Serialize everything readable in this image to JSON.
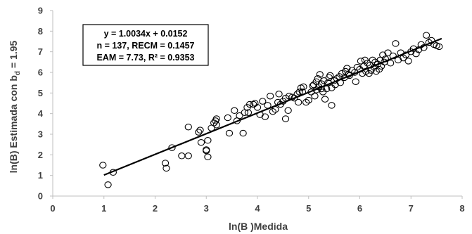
{
  "chart_data": {
    "type": "scatter",
    "xlabel": "ln(B )Medida",
    "ylabel_main": "ln(B) Estimada con b",
    "ylabel_sub": "d",
    "ylabel_tail": "= 1.95",
    "xlim": [
      0,
      8
    ],
    "ylim": [
      0,
      9
    ],
    "xticks": [
      "0",
      "1",
      "2",
      "3",
      "4",
      "5",
      "6",
      "7",
      "8"
    ],
    "yticks": [
      "0",
      "1",
      "2",
      "3",
      "4",
      "5",
      "6",
      "7",
      "8",
      "9"
    ],
    "grid": false,
    "annotation": {
      "line1": "y = 1.0034x + 0.0152",
      "line2": "n = 137, RECM = 0.1457",
      "line3": "EAM = 7.73, R² = 0.9353"
    },
    "trendline": {
      "slope": 1.0034,
      "intercept": 0.0152,
      "x_start": 1.0,
      "x_end": 7.6
    },
    "points": [
      [
        0.98,
        1.5
      ],
      [
        1.08,
        0.55
      ],
      [
        1.18,
        1.15
      ],
      [
        2.2,
        1.6
      ],
      [
        2.22,
        1.35
      ],
      [
        2.33,
        2.35
      ],
      [
        2.52,
        1.95
      ],
      [
        2.65,
        1.95
      ],
      [
        2.65,
        3.35
      ],
      [
        2.85,
        3.1
      ],
      [
        2.88,
        3.2
      ],
      [
        2.9,
        2.6
      ],
      [
        3.0,
        2.25
      ],
      [
        3.0,
        2.2
      ],
      [
        3.03,
        2.7
      ],
      [
        3.03,
        1.9
      ],
      [
        3.1,
        3.3
      ],
      [
        3.15,
        3.55
      ],
      [
        3.18,
        3.65
      ],
      [
        3.2,
        3.75
      ],
      [
        3.2,
        3.45
      ],
      [
        3.42,
        3.8
      ],
      [
        3.45,
        3.05
      ],
      [
        3.55,
        4.15
      ],
      [
        3.6,
        3.65
      ],
      [
        3.65,
        3.9
      ],
      [
        3.72,
        3.05
      ],
      [
        3.75,
        4.05
      ],
      [
        3.8,
        4.3
      ],
      [
        3.82,
        4.05
      ],
      [
        3.85,
        4.45
      ],
      [
        3.92,
        4.45
      ],
      [
        3.95,
        4.5
      ],
      [
        4.0,
        4.3
      ],
      [
        4.05,
        3.95
      ],
      [
        4.1,
        4.6
      ],
      [
        4.15,
        3.85
      ],
      [
        4.2,
        4.4
      ],
      [
        4.25,
        4.85
      ],
      [
        4.3,
        4.1
      ],
      [
        4.35,
        4.2
      ],
      [
        4.4,
        4.55
      ],
      [
        4.42,
        4.95
      ],
      [
        4.45,
        4.45
      ],
      [
        4.5,
        4.6
      ],
      [
        4.55,
        4.75
      ],
      [
        4.55,
        3.75
      ],
      [
        4.6,
        4.15
      ],
      [
        4.62,
        4.85
      ],
      [
        4.68,
        4.8
      ],
      [
        4.72,
        4.75
      ],
      [
        4.78,
        4.95
      ],
      [
        4.8,
        4.55
      ],
      [
        4.82,
        5.05
      ],
      [
        4.85,
        5.25
      ],
      [
        4.88,
        5.05
      ],
      [
        4.9,
        5.3
      ],
      [
        4.95,
        4.55
      ],
      [
        5.0,
        4.65
      ],
      [
        5.05,
        5.05
      ],
      [
        5.08,
        5.35
      ],
      [
        5.1,
        5.4
      ],
      [
        5.12,
        4.85
      ],
      [
        5.15,
        5.15
      ],
      [
        5.15,
        5.55
      ],
      [
        5.18,
        5.7
      ],
      [
        5.2,
        5.3
      ],
      [
        5.22,
        5.9
      ],
      [
        5.25,
        5.2
      ],
      [
        5.25,
        5.45
      ],
      [
        5.28,
        5.05
      ],
      [
        5.3,
        5.6
      ],
      [
        5.32,
        4.7
      ],
      [
        5.35,
        5.2
      ],
      [
        5.38,
        5.5
      ],
      [
        5.4,
        5.75
      ],
      [
        5.42,
        5.85
      ],
      [
        5.45,
        4.4
      ],
      [
        5.45,
        5.25
      ],
      [
        5.5,
        5.6
      ],
      [
        5.52,
        5.4
      ],
      [
        5.55,
        5.7
      ],
      [
        5.6,
        5.8
      ],
      [
        5.62,
        5.5
      ],
      [
        5.65,
        5.95
      ],
      [
        5.7,
        5.75
      ],
      [
        5.72,
        6.05
      ],
      [
        5.75,
        6.2
      ],
      [
        5.78,
        5.9
      ],
      [
        5.8,
        5.85
      ],
      [
        5.85,
        6.1
      ],
      [
        5.9,
        6.0
      ],
      [
        5.92,
        5.55
      ],
      [
        5.95,
        6.25
      ],
      [
        6.0,
        6.15
      ],
      [
        6.02,
        6.55
      ],
      [
        6.05,
        5.95
      ],
      [
        6.08,
        6.3
      ],
      [
        6.1,
        6.6
      ],
      [
        6.12,
        6.05
      ],
      [
        6.15,
        6.45
      ],
      [
        6.18,
        5.95
      ],
      [
        6.2,
        6.35
      ],
      [
        6.22,
        6.1
      ],
      [
        6.25,
        6.6
      ],
      [
        6.28,
        6.25
      ],
      [
        6.3,
        6.5
      ],
      [
        6.32,
        6.05
      ],
      [
        6.35,
        6.4
      ],
      [
        6.38,
        6.15
      ],
      [
        6.4,
        6.6
      ],
      [
        6.42,
        6.3
      ],
      [
        6.45,
        6.85
      ],
      [
        6.48,
        6.5
      ],
      [
        6.5,
        6.65
      ],
      [
        6.55,
        6.95
      ],
      [
        6.6,
        6.45
      ],
      [
        6.65,
        6.8
      ],
      [
        6.7,
        7.4
      ],
      [
        6.75,
        6.6
      ],
      [
        6.8,
        6.95
      ],
      [
        6.85,
        6.7
      ],
      [
        6.9,
        6.85
      ],
      [
        6.95,
        6.55
      ],
      [
        7.0,
        7.0
      ],
      [
        7.05,
        7.15
      ],
      [
        7.1,
        6.9
      ],
      [
        7.15,
        7.1
      ],
      [
        7.2,
        7.35
      ],
      [
        7.25,
        7.2
      ],
      [
        7.3,
        7.8
      ],
      [
        7.35,
        7.45
      ],
      [
        7.4,
        7.55
      ],
      [
        7.45,
        7.35
      ],
      [
        7.5,
        7.3
      ],
      [
        7.55,
        7.25
      ]
    ]
  }
}
